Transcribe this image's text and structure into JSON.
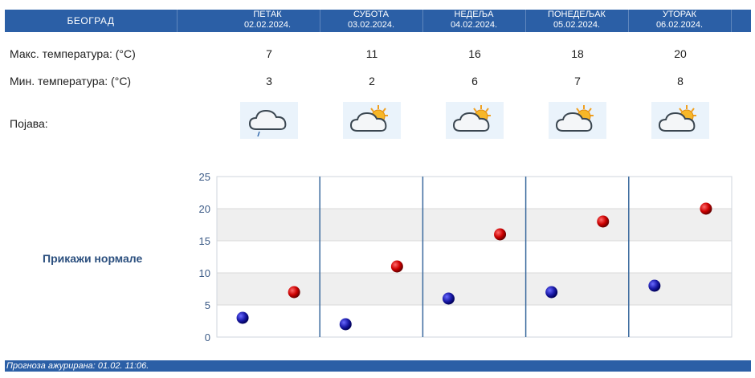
{
  "header": {
    "city": "БЕОГРАД",
    "days": [
      {
        "day": "ПЕТАК",
        "date": "02.02.2024."
      },
      {
        "day": "СУБОТА",
        "date": "03.02.2024."
      },
      {
        "day": "НЕДЕЉА",
        "date": "04.02.2024."
      },
      {
        "day": "ПОНЕДЕЉАК",
        "date": "05.02.2024."
      },
      {
        "day": "УТОРАК",
        "date": "06.02.2024."
      }
    ]
  },
  "rows": {
    "max_label": "Макс. температура: (°C)",
    "min_label": "Мин. температура: (°C)",
    "phenomenon_label": "Појава:",
    "max_values": [
      "7",
      "11",
      "16",
      "18",
      "20"
    ],
    "min_values": [
      "3",
      "2",
      "6",
      "7",
      "8"
    ]
  },
  "icons": [
    "cloudy-drizzle-icon",
    "partly-cloudy-sun-icon",
    "partly-cloudy-sun-icon",
    "partly-cloudy-sun-icon",
    "partly-cloudy-sun-icon"
  ],
  "normals_link": "Прикажи нормале",
  "footer": {
    "updated": "Прогноза ажурирана:  01.02. 11:06."
  },
  "colors": {
    "brand": "#2b5fa6",
    "max_point": "#cc0000",
    "min_point": "#1a1aa8"
  },
  "chart_data": {
    "type": "scatter",
    "ylim": [
      0,
      25
    ],
    "yticks": [
      0,
      5,
      10,
      15,
      20,
      25
    ],
    "grid": "alternating horizontal bands",
    "categories": [
      "02.02.2024.",
      "03.02.2024.",
      "04.02.2024.",
      "05.02.2024.",
      "06.02.2024."
    ],
    "series": [
      {
        "key": "min",
        "values": [
          3,
          2,
          6,
          7,
          8
        ],
        "color": "#1a1aa8"
      },
      {
        "key": "max",
        "values": [
          7,
          11,
          16,
          18,
          20
        ],
        "color": "#cc0000"
      }
    ]
  }
}
